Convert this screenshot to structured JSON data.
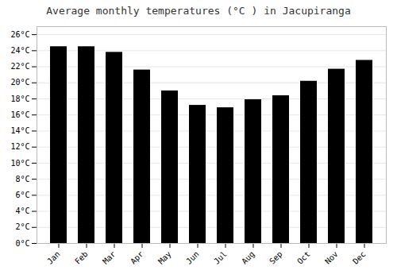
{
  "chart_data": {
    "type": "bar",
    "title": "Average monthly temperatures (°C ) in Jacupiranga",
    "categories": [
      "Jan",
      "Feb",
      "Mar",
      "Apr",
      "May",
      "Jun",
      "Jul",
      "Aug",
      "Sep",
      "Oct",
      "Nov",
      "Dec"
    ],
    "values": [
      24.5,
      24.5,
      23.8,
      21.6,
      19.0,
      17.2,
      16.9,
      17.9,
      18.4,
      20.2,
      21.7,
      22.8
    ],
    "ylim": [
      0,
      27
    ],
    "yticks": [
      {
        "value": 0,
        "label": "0°C"
      },
      {
        "value": 2,
        "label": "2°C"
      },
      {
        "value": 4,
        "label": "4°C"
      },
      {
        "value": 6,
        "label": "6°C"
      },
      {
        "value": 8,
        "label": "8°C"
      },
      {
        "value": 10,
        "label": "10°C"
      },
      {
        "value": 12,
        "label": "12°C"
      },
      {
        "value": 14,
        "label": "14°C"
      },
      {
        "value": 16,
        "label": "16°C"
      },
      {
        "value": 18,
        "label": "18°C"
      },
      {
        "value": 20,
        "label": "20°C"
      },
      {
        "value": 22,
        "label": "22°C"
      },
      {
        "value": 24,
        "label": "24°C"
      },
      {
        "value": 26,
        "label": "26°C"
      }
    ],
    "grid": true
  }
}
